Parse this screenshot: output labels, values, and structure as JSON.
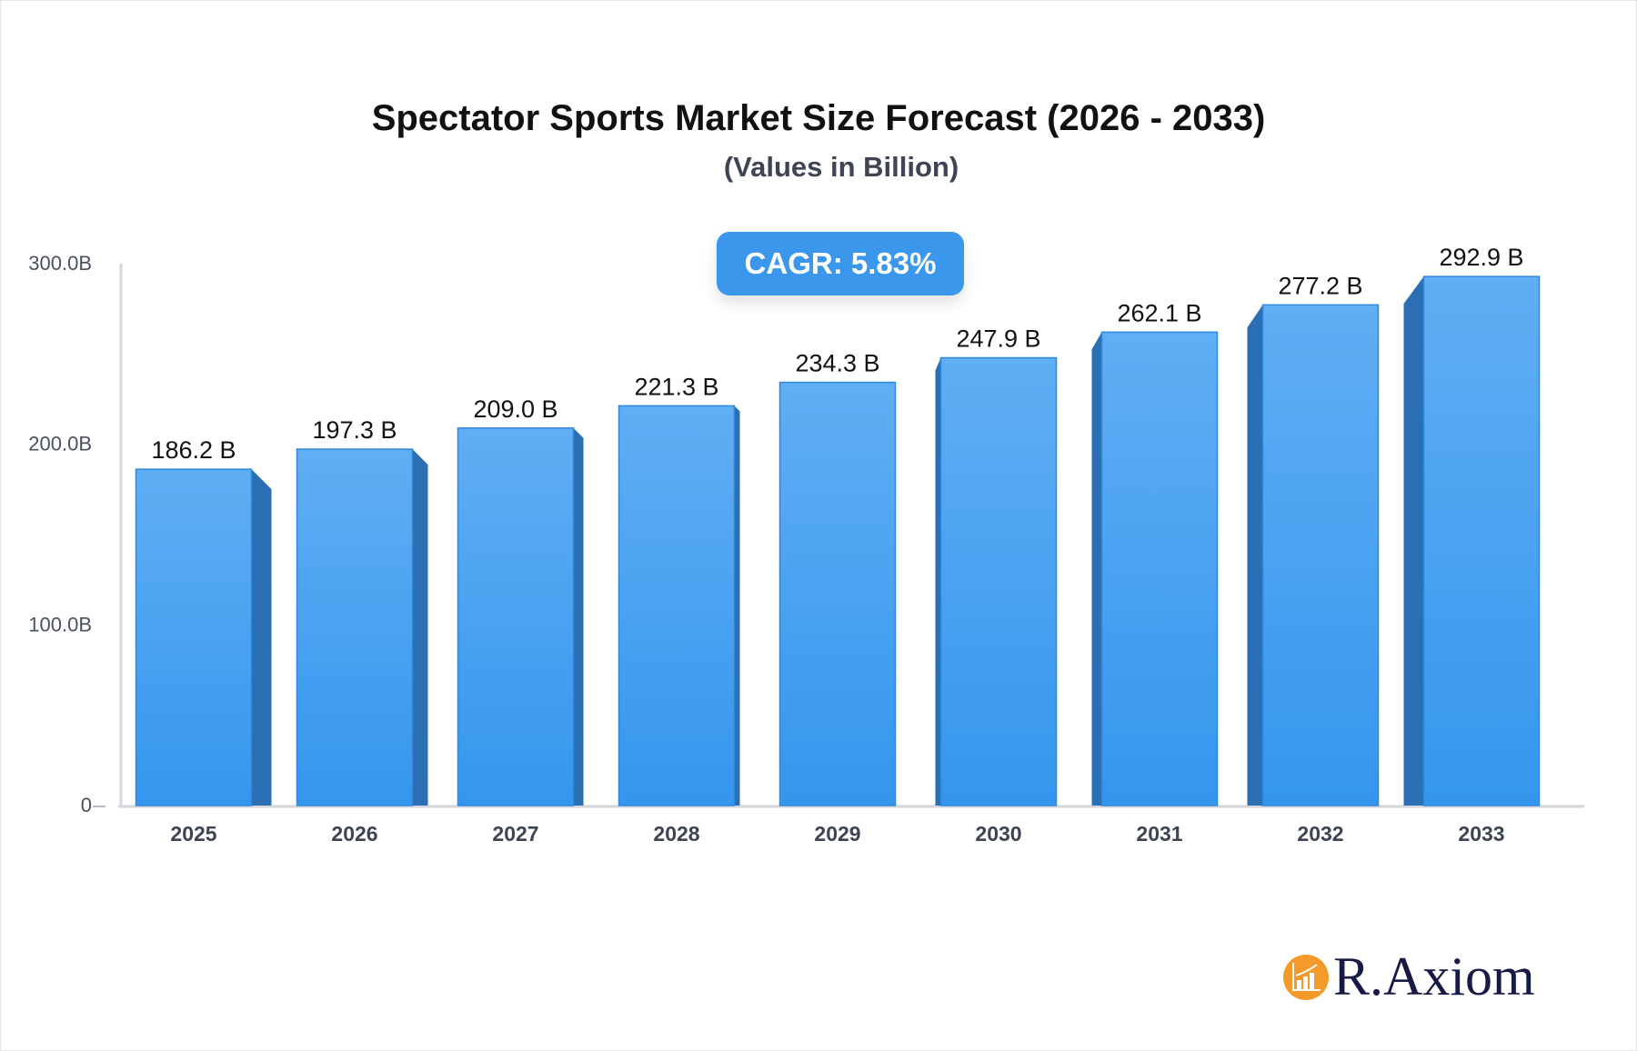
{
  "chart_data": {
    "type": "bar",
    "title": "Spectator Sports Market Size Forecast (2026 - 2033)",
    "subtitle": "(Values in Billion)",
    "categories": [
      "2025",
      "2026",
      "2027",
      "2028",
      "2029",
      "2030",
      "2031",
      "2032",
      "2033"
    ],
    "values": [
      186.2,
      197.3,
      209.0,
      221.3,
      234.3,
      247.9,
      262.1,
      277.2,
      292.9
    ],
    "data_labels": [
      "186.2 B",
      "197.3 B",
      "209.0 B",
      "221.3 B",
      "234.3 B",
      "247.9 B",
      "262.1 B",
      "277.2 B",
      "292.9 B"
    ],
    "ylim": [
      0,
      300
    ],
    "yticks": [
      0,
      100,
      200,
      300
    ],
    "ytick_labels": [
      "0",
      "100.0B",
      "200.0B",
      "300.0B"
    ],
    "xlabel": "",
    "ylabel": "",
    "grid": false,
    "bar_color": "#3b97ec",
    "bar_side_color": "#2a6fb3",
    "annotation": "CAGR: 5.83%"
  },
  "logo": {
    "text": "R.Axiom",
    "color": "#f39a2a"
  }
}
